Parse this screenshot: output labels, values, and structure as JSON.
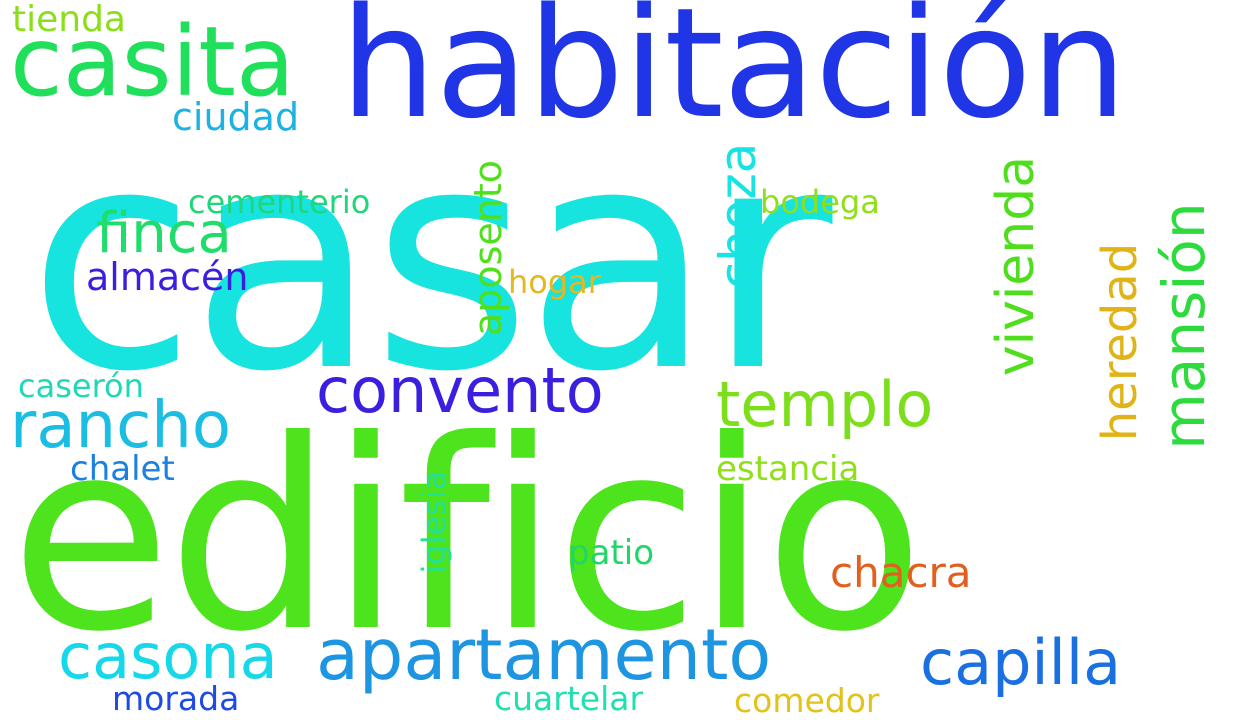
{
  "words": [
    {
      "id": "casar",
      "text": "casar",
      "color": "#17e3df"
    },
    {
      "id": "edificio",
      "text": "edificio",
      "color": "#4de31d"
    },
    {
      "id": "habitacion",
      "text": "habitación",
      "color": "#1f35e6"
    },
    {
      "id": "casita",
      "text": "casita",
      "color": "#20df5a"
    },
    {
      "id": "apartamento",
      "text": "apartamento",
      "color": "#1d95e0"
    },
    {
      "id": "casona",
      "text": "casona",
      "color": "#17d8e8"
    },
    {
      "id": "capilla",
      "text": "capilla",
      "color": "#1a70e1"
    },
    {
      "id": "convento",
      "text": "convento",
      "color": "#3a1fdf"
    },
    {
      "id": "rancho",
      "text": "rancho",
      "color": "#1bbde3"
    },
    {
      "id": "templo",
      "text": "templo",
      "color": "#7ddf1b"
    },
    {
      "id": "finca",
      "text": "finca",
      "color": "#20dc6a"
    },
    {
      "id": "vivienda",
      "text": "vivienda",
      "color": "#4fde1b"
    },
    {
      "id": "mansion",
      "text": "mansión",
      "color": "#2ddb3e"
    },
    {
      "id": "heredad",
      "text": "heredad",
      "color": "#e0b317"
    },
    {
      "id": "choza",
      "text": "choza",
      "color": "#17e3e3"
    },
    {
      "id": "aposento",
      "text": "aposento",
      "color": "#50e01b"
    },
    {
      "id": "chacra",
      "text": "chacra",
      "color": "#e06020"
    },
    {
      "id": "almacen",
      "text": "almacén",
      "color": "#3b1fe0"
    },
    {
      "id": "ciudad",
      "text": "ciudad",
      "color": "#1cb2e2"
    },
    {
      "id": "tienda",
      "text": "tienda",
      "color": "#8cde1b"
    },
    {
      "id": "cementerio",
      "text": "cementerio",
      "color": "#20d67a"
    },
    {
      "id": "bodega",
      "text": "bodega",
      "color": "#90df1b"
    },
    {
      "id": "hogar",
      "text": "hogar",
      "color": "#e5b720"
    },
    {
      "id": "caseron",
      "text": "caserón",
      "color": "#20d8b8"
    },
    {
      "id": "chalet",
      "text": "chalet",
      "color": "#1c80df"
    },
    {
      "id": "estancia",
      "text": "estancia",
      "color": "#8fdf1b"
    },
    {
      "id": "iglesia",
      "text": "iglesia",
      "color": "#22e09a"
    },
    {
      "id": "patio",
      "text": "patio",
      "color": "#20d668"
    },
    {
      "id": "morada",
      "text": "morada",
      "color": "#1f4be0"
    },
    {
      "id": "cuartelar",
      "text": "cuartelar",
      "color": "#20e0b0"
    },
    {
      "id": "comedor",
      "text": "comedor",
      "color": "#e3c21b"
    }
  ]
}
